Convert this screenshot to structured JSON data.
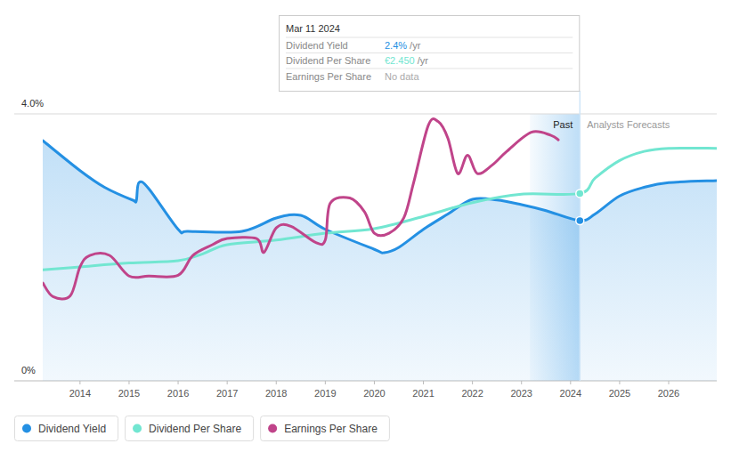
{
  "chart_data": {
    "type": "line",
    "xlim": [
      2013.24,
      2026.98
    ],
    "xticks": [
      2014,
      2015,
      2016,
      2017,
      2018,
      2019,
      2020,
      2021,
      2022,
      2023,
      2024,
      2025,
      2026
    ],
    "ylim": [
      0,
      4
    ],
    "yticks": [
      {
        "value": 0,
        "label": "0%"
      },
      {
        "value": 4,
        "label": "4.0%"
      }
    ],
    "y2lim": [
      0,
      3.49
    ],
    "tick_labels": "y",
    "grid": true,
    "legend": "bottom-left",
    "series": [
      {
        "name": "Dividend Yield",
        "color": "#2490e3",
        "type": "area",
        "x": [
          2013.24,
          2014,
          2014.5,
          2015.1,
          2015.15,
          2015.2,
          2015.4,
          2016,
          2016.2,
          2017.3,
          2018,
          2018.5,
          2019,
          2020,
          2020.2,
          2020.5,
          2021,
          2021.5,
          2022,
          2022.5,
          2023,
          2023.5,
          2024.19,
          2024.5,
          2025,
          2025.5,
          2026,
          2026.98
        ],
        "values": [
          3.6,
          3.15,
          2.9,
          2.7,
          2.71,
          2.97,
          2.88,
          2.27,
          2.24,
          2.24,
          2.44,
          2.48,
          2.27,
          1.97,
          1.92,
          2.0,
          2.27,
          2.5,
          2.72,
          2.71,
          2.64,
          2.55,
          2.4,
          2.5,
          2.77,
          2.9,
          2.97,
          3.0
        ]
      },
      {
        "name": "Dividend Per Share",
        "color": "#72e6d1",
        "axis": "y2",
        "x": [
          2013.24,
          2014,
          2015,
          2016,
          2016.5,
          2017,
          2018,
          2019,
          2020,
          2021,
          2022,
          2023,
          2024.19,
          2024.5,
          2025,
          2025.5,
          2026,
          2026.98
        ],
        "values": [
          1.45,
          1.49,
          1.54,
          1.57,
          1.66,
          1.78,
          1.84,
          1.93,
          1.99,
          2.15,
          2.33,
          2.44,
          2.45,
          2.65,
          2.88,
          3.0,
          3.04,
          3.04
        ]
      },
      {
        "name": "Earnings Per Share",
        "color": "#c0448a",
        "axis": "y2",
        "x": [
          2013.24,
          2013.45,
          2013.8,
          2014,
          2014.2,
          2014.6,
          2015,
          2015.4,
          2016,
          2016.3,
          2016.7,
          2017,
          2017.6,
          2017.75,
          2018,
          2018.3,
          2018.8,
          2019,
          2019.1,
          2019.5,
          2019.8,
          2020,
          2020.3,
          2020.6,
          2020.8,
          2021.1,
          2021.3,
          2021.5,
          2021.7,
          2021.9,
          2022.1,
          2022.4,
          2022.7,
          2023.2,
          2023.6,
          2023.75
        ],
        "values": [
          1.28,
          1.1,
          1.11,
          1.49,
          1.64,
          1.64,
          1.37,
          1.37,
          1.38,
          1.64,
          1.78,
          1.86,
          1.86,
          1.68,
          2.0,
          2.02,
          1.81,
          1.84,
          2.32,
          2.39,
          2.21,
          1.93,
          1.93,
          2.13,
          2.59,
          3.34,
          3.39,
          3.17,
          2.71,
          2.95,
          2.71,
          2.82,
          3.0,
          3.25,
          3.21,
          3.15
        ]
      }
    ],
    "annotations": [
      {
        "text": "Past",
        "x": [
          2023.17,
          2024.19
        ]
      },
      {
        "text": "Analysts Forecasts",
        "x": 2024.19
      }
    ],
    "tooltip": {
      "title": "Mar 11 2024",
      "x": 2024.19,
      "rows": [
        {
          "label": "Dividend Yield",
          "value": "2.4%",
          "suffix": "/yr"
        },
        {
          "label": "Dividend Per Share",
          "value": "€2.450",
          "suffix": "/yr"
        },
        {
          "label": "Earnings Per Share",
          "value": "No data"
        }
      ]
    }
  }
}
